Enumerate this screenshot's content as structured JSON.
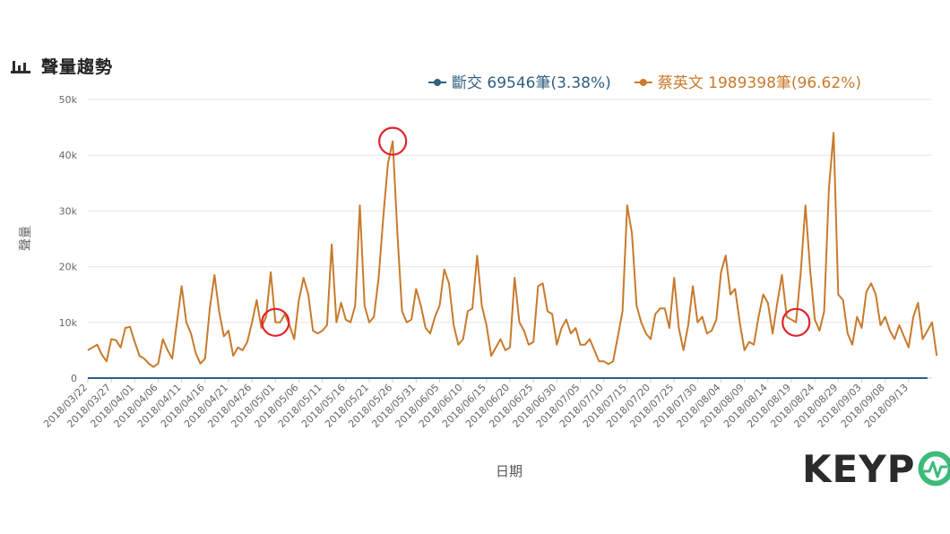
{
  "header": {
    "title": "聲量趨勢"
  },
  "logo": {
    "brand_text": "KEYPO"
  },
  "colors": {
    "series_0": "#2f5f7f",
    "series_1": "#c87a2c",
    "grid": "#e6e6e6",
    "circle": "#e0242c",
    "logo_green": "#3dbb7a"
  },
  "chart_data": {
    "type": "line",
    "xlabel": "日期",
    "ylabel": "聲量",
    "ylim": [
      0,
      50000
    ],
    "yticks": [
      0,
      10000,
      20000,
      30000,
      40000,
      50000
    ],
    "ytick_labels": [
      "0",
      "10k",
      "20k",
      "30k",
      "40k",
      "50k"
    ],
    "xtick_labels": [
      "2018/03/22",
      "2018/03/27",
      "2018/04/01",
      "2018/04/06",
      "2018/04/11",
      "2018/04/16",
      "2018/04/21",
      "2018/04/26",
      "2018/05/01",
      "2018/05/06",
      "2018/05/11",
      "2018/05/16",
      "2018/05/21",
      "2018/05/26",
      "2018/05/31",
      "2018/06/05",
      "2018/06/10",
      "2018/06/15",
      "2018/06/20",
      "2018/06/25",
      "2018/06/30",
      "2018/07/05",
      "2018/07/10",
      "2018/07/15",
      "2018/07/20",
      "2018/07/25",
      "2018/07/30",
      "2018/08/04",
      "2018/08/09",
      "2018/08/14",
      "2018/08/19",
      "2018/08/24",
      "2018/08/29",
      "2018/09/03",
      "2018/09/08",
      "2018/09/13"
    ],
    "x_start": "2018/03/22",
    "x_end": "2018/09/18",
    "legend_position": "top-right",
    "series": [
      {
        "name": "斷交",
        "legend_label": "斷交 69546筆(3.38%)",
        "values": [
          0,
          0,
          0,
          0,
          0,
          0,
          0,
          0,
          0,
          0,
          0,
          0,
          0,
          0,
          0,
          0,
          0,
          0,
          0,
          0,
          0,
          0,
          0,
          0,
          0,
          0,
          0,
          0,
          0,
          0,
          0,
          0,
          0,
          0,
          0,
          0,
          0,
          0,
          0,
          0,
          0,
          0,
          0,
          0,
          0,
          0,
          0,
          0,
          0,
          0,
          0,
          0,
          0,
          0,
          0,
          0,
          0,
          0,
          0,
          0,
          0,
          0,
          0,
          0,
          0,
          0,
          0,
          0,
          0,
          0,
          0,
          0,
          0,
          0,
          0,
          0,
          0,
          0,
          0,
          0,
          0,
          0,
          0,
          0,
          0,
          0,
          0,
          0,
          0,
          0,
          0,
          0,
          0,
          0,
          0,
          0,
          0,
          0,
          0,
          0,
          0,
          0,
          0,
          0,
          0,
          0,
          0,
          0,
          0,
          0,
          0,
          0,
          0,
          0,
          0,
          0,
          0,
          0,
          0,
          0,
          0,
          0,
          0,
          0,
          0,
          0,
          0,
          0,
          0,
          0,
          0,
          0,
          0,
          0,
          0,
          0,
          0,
          0,
          0,
          0,
          0,
          0,
          0,
          0,
          0,
          0,
          0,
          0,
          0,
          0,
          0,
          0,
          0,
          0,
          0,
          0,
          0,
          0,
          0,
          0,
          0,
          0,
          0,
          0,
          0,
          0,
          0,
          0,
          0,
          0,
          0,
          0,
          0,
          0,
          0,
          0,
          0,
          0,
          0,
          0
        ]
      },
      {
        "name": "蔡英文",
        "legend_label": "蔡英文 1989398筆(96.62%)",
        "values": [
          5000,
          5500,
          6000,
          4200,
          3000,
          7000,
          6800,
          5500,
          9000,
          9200,
          6500,
          4000,
          3500,
          2600,
          2000,
          2600,
          7000,
          5000,
          3500,
          10000,
          16500,
          10000,
          8000,
          4500,
          2600,
          3500,
          12500,
          18500,
          12000,
          7500,
          8500,
          4000,
          5500,
          5000,
          6500,
          10000,
          14000,
          9000,
          11000,
          19000,
          10000,
          10000,
          11500,
          9500,
          7000,
          14000,
          18000,
          15000,
          8500,
          8000,
          8500,
          9500,
          24000,
          10000,
          13500,
          10500,
          10000,
          13000,
          31000,
          13000,
          10000,
          11000,
          18000,
          29000,
          38500,
          42500,
          26000,
          12000,
          10000,
          10500,
          16000,
          13000,
          9000,
          8000,
          11000,
          13000,
          19500,
          17000,
          9500,
          6000,
          7000,
          12000,
          12500,
          22000,
          13000,
          9500,
          4000,
          5500,
          7000,
          5000,
          5500,
          18000,
          10000,
          8500,
          6000,
          6500,
          16500,
          17000,
          12000,
          11500,
          6000,
          9000,
          10500,
          8000,
          9000,
          6000,
          6000,
          7000,
          5000,
          3000,
          3000,
          2500,
          3000,
          7500,
          12000,
          31000,
          26000,
          13000,
          10000,
          8000,
          7000,
          11500,
          12500,
          12500,
          9000,
          18000,
          9000,
          5000,
          9500,
          16500,
          10000,
          11000,
          8000,
          8500,
          10500,
          19000,
          22000,
          15000,
          16000,
          10000,
          5000,
          6500,
          6000,
          11000,
          15000,
          13500,
          8000,
          13500,
          18500,
          11000,
          10500,
          10000,
          19000,
          31000,
          19500,
          10500,
          8500,
          12000,
          34000,
          44000,
          15000,
          14000,
          8000,
          6000,
          11000,
          9000,
          15500,
          17000,
          15000,
          9500,
          11000,
          8500,
          7000,
          9500,
          7500,
          5500,
          11000,
          13500,
          7000,
          8500,
          10000,
          4000
        ]
      }
    ],
    "circled_points": [
      {
        "series": 1,
        "x": "2018/05/01"
      },
      {
        "series": 1,
        "x": "2018/05/26"
      },
      {
        "series": 1,
        "x": "2018/08/20"
      }
    ]
  }
}
